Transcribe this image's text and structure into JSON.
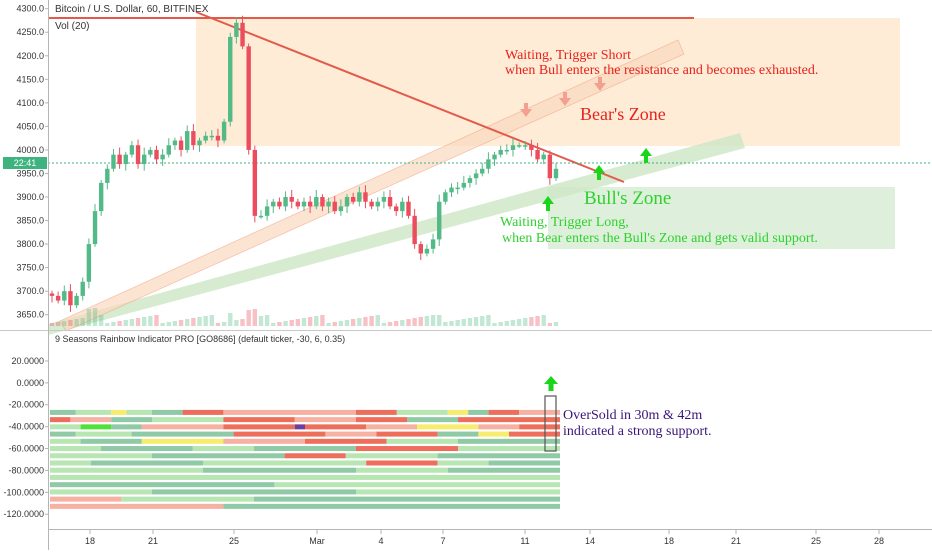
{
  "chart_data": [
    {
      "type": "candlestick",
      "title": "Bitcoin / U.S. Dollar, 60, BITFINEX",
      "volume_label": "Vol (20)",
      "price_tag": "22:41",
      "y_ticks": [
        "4300.0",
        "4250.0",
        "4200.0",
        "4150.0",
        "4100.0",
        "4050.0",
        "4000.0",
        "3950.0",
        "3900.0",
        "3850.0",
        "3800.0",
        "3750.0",
        "3700.0",
        "3650.0"
      ],
      "y_tick_values": [
        4300,
        4250,
        4200,
        4150,
        4100,
        4050,
        4000,
        3950,
        3900,
        3850,
        3800,
        3750,
        3700,
        3650
      ],
      "ylim": [
        3626,
        4310
      ],
      "x_ticks": [
        "18",
        "21",
        "25",
        "Mar",
        "4",
        "7",
        "11",
        "14",
        "18",
        "21",
        "25",
        "28"
      ],
      "candle_closes": [
        3690,
        3680,
        3700,
        3670,
        3690,
        3720,
        3800,
        3870,
        3930,
        3960,
        3990,
        3970,
        3990,
        4010,
        3970,
        3990,
        4000,
        3980,
        3990,
        4010,
        4020,
        4000,
        4040,
        4010,
        4020,
        4030,
        4030,
        4020,
        4060,
        4240,
        4270,
        4220,
        4000,
        3860,
        3860,
        3880,
        3890,
        3880,
        3900,
        3890,
        3880,
        3890,
        3880,
        3900,
        3880,
        3890,
        3870,
        3880,
        3900,
        3890,
        3910,
        3890,
        3880,
        3890,
        3900,
        3880,
        3870,
        3890,
        3860,
        3800,
        3780,
        3790,
        3810,
        3890,
        3910,
        3920,
        3920,
        3930,
        3940,
        3950,
        3960,
        3980,
        3990,
        4000,
        4000,
        4010,
        4010,
        4010,
        4000,
        3980,
        3990,
        3940,
        3960
      ],
      "annotations": {
        "short_note_1": "Waiting, Trigger Short",
        "short_note_2": "when Bull enters the resistance and becomes exhausted.",
        "bear_zone": "Bear's Zone",
        "bull_zone": "Bull's Zone",
        "long_note_1": "Waiting, Trigger Long,",
        "long_note_2": "when Bear enters the Bull's Zone and gets valid support."
      },
      "colors": {
        "up": "#53b987",
        "down": "#eb4d5c",
        "bear_zone": "#fde5c8",
        "bull_zone": "#d6ecd2",
        "resistance_line": "#e35a4c",
        "short_text": "#e8221d",
        "long_text": "#2ed12e",
        "arrow_down": "#f4a090",
        "arrow_up": "#19d619"
      }
    },
    {
      "type": "heatmap",
      "title": "9 Seasons Rainbow Indicator PRO [GO8686] (default ticker, -30, 6, 0.35)",
      "y_ticks": [
        "20.0000",
        "0.0000",
        "-20.0000",
        "-40.0000",
        "-60.0000",
        "-80.0000",
        "-100.0000",
        "-120.0000"
      ],
      "y_tick_values": [
        20,
        0,
        -20,
        -40,
        -60,
        -80,
        -100,
        -120
      ],
      "ylim": [
        -128,
        30
      ],
      "annotation_1": "OverSold in 30m & 42m",
      "annotation_2": "indicated a strong support.",
      "colors": {
        "light_green": "#b7e6b3",
        "teal_green": "#8fc9a6",
        "salmon": "#f6b1a2",
        "red": "#ee6e5c",
        "yellow": "#f6ec6e",
        "bright_green": "#4fe03c",
        "purple": "#6a3fa0",
        "note_text": "#3b1478",
        "arrow_up": "#19d619"
      }
    }
  ]
}
